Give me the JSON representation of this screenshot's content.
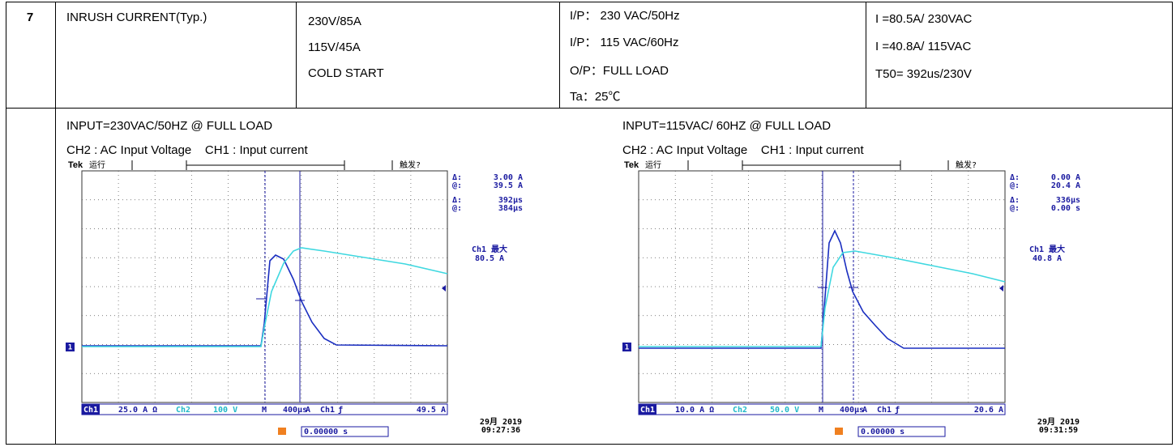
{
  "table": {
    "number": "7",
    "item": "INRUSH CURRENT(Typ.)",
    "condition": [
      "230V/85A",
      "115V/45A",
      "COLD START"
    ],
    "test": [
      "I/P：  230 VAC/50Hz",
      "I/P：  115 VAC/60Hz",
      "O/P：FULL LOAD",
      "Ta：25℃"
    ],
    "result": [
      "I =80.5A/ 230VAC",
      "I =40.8A/ 115VAC",
      "T50= 392us/230V"
    ]
  },
  "scopes": [
    {
      "title": "INPUT=230VAC/50HZ @ FULL LOAD",
      "subtitle": "CH2 : AC Input Voltage    CH1 : Input current",
      "brand": "Tek",
      "status": "运行",
      "trigger_status": "触发?",
      "trigger_marker": "T",
      "channel_marker": "1",
      "readouts": [
        {
          "label": "Δ:",
          "value": "3.00 A"
        },
        {
          "label": "@:",
          "value": "39.5 A"
        },
        {
          "label": "Δ:",
          "value": "392µs"
        },
        {
          "label": "@:",
          "value": "384µs"
        }
      ],
      "max_label": "Ch1 最大",
      "max_value": "80.5 A",
      "bar": [
        "Ch1",
        "25.0 A Ω",
        "Ch2",
        "100 V",
        "M",
        "400µs",
        "A",
        "Ch1",
        "ƒ",
        "49.5 A"
      ],
      "date": "29月 2019",
      "time": "09:27:36",
      "trigger_pos": "0.00000 s"
    },
    {
      "title": "INPUT=115VAC/ 60HZ @ FULL LOAD",
      "subtitle": "CH2 : AC Input Voltage    CH1 : Input current",
      "brand": "Tek",
      "status": "运行",
      "trigger_status": "触发?",
      "trigger_marker": "T",
      "channel_marker": "1",
      "readouts": [
        {
          "label": "Δ:",
          "value": "0.00 A"
        },
        {
          "label": "@:",
          "value": "20.4 A"
        },
        {
          "label": "Δ:",
          "value": "336µs"
        },
        {
          "label": "@:",
          "value": "0.00 s"
        }
      ],
      "max_label": "Ch1 最大",
      "max_value": "40.8 A",
      "bar": [
        "Ch1",
        "10.0 A Ω",
        "Ch2",
        "50.0 V",
        "M",
        "400µs",
        "A",
        "Ch1",
        "ƒ",
        "20.6 A"
      ],
      "date": "29月 2019",
      "time": "09:31:59",
      "trigger_pos": "0.00000 s"
    }
  ]
}
